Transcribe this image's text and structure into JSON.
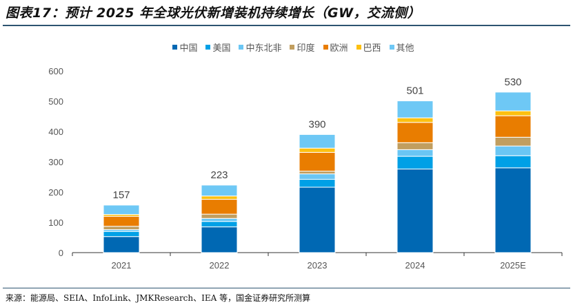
{
  "title": "图表17：预计 2025 年全球光伏新增装机持续增长（GW，交流侧）",
  "source": "来源：能源局、SEIA、InfoLink、JMKResearch、IEA 等，国金证券研究所测算",
  "chart_data": {
    "type": "bar",
    "stacked": true,
    "categories": [
      "2021",
      "2022",
      "2023",
      "2024",
      "2025E"
    ],
    "series": [
      {
        "name": "中国",
        "color": "#0068b3",
        "values": [
          53,
          85,
          216,
          276,
          280
        ]
      },
      {
        "name": "美国",
        "color": "#00a0e6",
        "values": [
          17,
          18,
          26,
          42,
          40
        ]
      },
      {
        "name": "中东北非",
        "color": "#6ac6f4",
        "values": [
          6,
          10,
          18,
          22,
          32
        ]
      },
      {
        "name": "印度",
        "color": "#c19e5f",
        "values": [
          11,
          14,
          9,
          23,
          29
        ]
      },
      {
        "name": "欧洲",
        "color": "#e97d00",
        "values": [
          33,
          49,
          62,
          67,
          71
        ]
      },
      {
        "name": "巴西",
        "color": "#fdc010",
        "values": [
          6,
          11,
          14,
          15,
          16
        ]
      },
      {
        "name": "其他",
        "color": "#6ec8f5",
        "values": [
          31,
          36,
          45,
          56,
          62
        ]
      }
    ],
    "totals": [
      "157",
      "223",
      "390",
      "501",
      "530"
    ],
    "yticks": [
      "0",
      "100",
      "200",
      "300",
      "400",
      "500",
      "600"
    ],
    "ylim": [
      0,
      600
    ],
    "grid": false,
    "legend": "top"
  }
}
